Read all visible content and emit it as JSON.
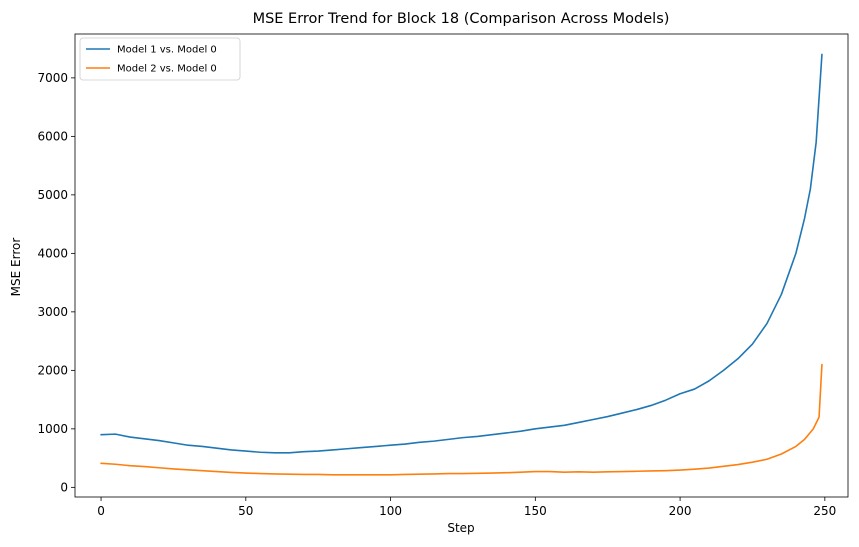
{
  "chart_data": {
    "type": "line",
    "title": "MSE Error Trend for Block 18 (Comparison Across Models)",
    "xlabel": "Step",
    "ylabel": "MSE Error",
    "xlim": [
      -9,
      258
    ],
    "ylim": [
      -165,
      7750
    ],
    "xticks": [
      0,
      50,
      100,
      150,
      200,
      250
    ],
    "yticks": [
      0,
      1000,
      2000,
      3000,
      4000,
      5000,
      6000,
      7000
    ],
    "grid": false,
    "legend_position": "top-left",
    "series": [
      {
        "name": "Model 1 vs. Model 0",
        "color": "#1f77b4",
        "points": [
          [
            0,
            900
          ],
          [
            5,
            910
          ],
          [
            10,
            860
          ],
          [
            15,
            830
          ],
          [
            20,
            800
          ],
          [
            25,
            760
          ],
          [
            30,
            720
          ],
          [
            35,
            700
          ],
          [
            40,
            670
          ],
          [
            45,
            640
          ],
          [
            50,
            620
          ],
          [
            55,
            600
          ],
          [
            60,
            590
          ],
          [
            65,
            590
          ],
          [
            70,
            610
          ],
          [
            75,
            620
          ],
          [
            80,
            640
          ],
          [
            85,
            660
          ],
          [
            90,
            680
          ],
          [
            95,
            700
          ],
          [
            100,
            720
          ],
          [
            105,
            740
          ],
          [
            110,
            770
          ],
          [
            115,
            790
          ],
          [
            120,
            820
          ],
          [
            125,
            850
          ],
          [
            130,
            870
          ],
          [
            135,
            900
          ],
          [
            140,
            930
          ],
          [
            145,
            960
          ],
          [
            150,
            1000
          ],
          [
            155,
            1030
          ],
          [
            160,
            1060
          ],
          [
            165,
            1110
          ],
          [
            170,
            1160
          ],
          [
            175,
            1210
          ],
          [
            180,
            1270
          ],
          [
            185,
            1330
          ],
          [
            190,
            1400
          ],
          [
            195,
            1490
          ],
          [
            200,
            1600
          ],
          [
            205,
            1680
          ],
          [
            210,
            1820
          ],
          [
            215,
            2000
          ],
          [
            220,
            2200
          ],
          [
            225,
            2450
          ],
          [
            230,
            2800
          ],
          [
            235,
            3300
          ],
          [
            240,
            4000
          ],
          [
            243,
            4600
          ],
          [
            245,
            5100
          ],
          [
            247,
            5900
          ],
          [
            249,
            7400
          ]
        ]
      },
      {
        "name": "Model 2 vs. Model 0",
        "color": "#ff7f0e",
        "points": [
          [
            0,
            410
          ],
          [
            5,
            395
          ],
          [
            10,
            370
          ],
          [
            15,
            355
          ],
          [
            20,
            335
          ],
          [
            25,
            315
          ],
          [
            30,
            300
          ],
          [
            35,
            285
          ],
          [
            40,
            270
          ],
          [
            45,
            255
          ],
          [
            50,
            245
          ],
          [
            55,
            235
          ],
          [
            60,
            230
          ],
          [
            65,
            225
          ],
          [
            70,
            220
          ],
          [
            75,
            220
          ],
          [
            80,
            215
          ],
          [
            85,
            215
          ],
          [
            90,
            215
          ],
          [
            95,
            215
          ],
          [
            100,
            215
          ],
          [
            105,
            220
          ],
          [
            110,
            225
          ],
          [
            115,
            230
          ],
          [
            120,
            235
          ],
          [
            125,
            235
          ],
          [
            130,
            240
          ],
          [
            135,
            245
          ],
          [
            140,
            250
          ],
          [
            145,
            260
          ],
          [
            150,
            270
          ],
          [
            155,
            270
          ],
          [
            160,
            260
          ],
          [
            165,
            265
          ],
          [
            170,
            260
          ],
          [
            175,
            265
          ],
          [
            180,
            270
          ],
          [
            185,
            275
          ],
          [
            190,
            280
          ],
          [
            195,
            285
          ],
          [
            200,
            295
          ],
          [
            205,
            310
          ],
          [
            210,
            330
          ],
          [
            215,
            360
          ],
          [
            220,
            390
          ],
          [
            225,
            430
          ],
          [
            230,
            480
          ],
          [
            235,
            570
          ],
          [
            240,
            700
          ],
          [
            243,
            820
          ],
          [
            246,
            1000
          ],
          [
            248,
            1200
          ],
          [
            249,
            2100
          ]
        ]
      }
    ]
  }
}
